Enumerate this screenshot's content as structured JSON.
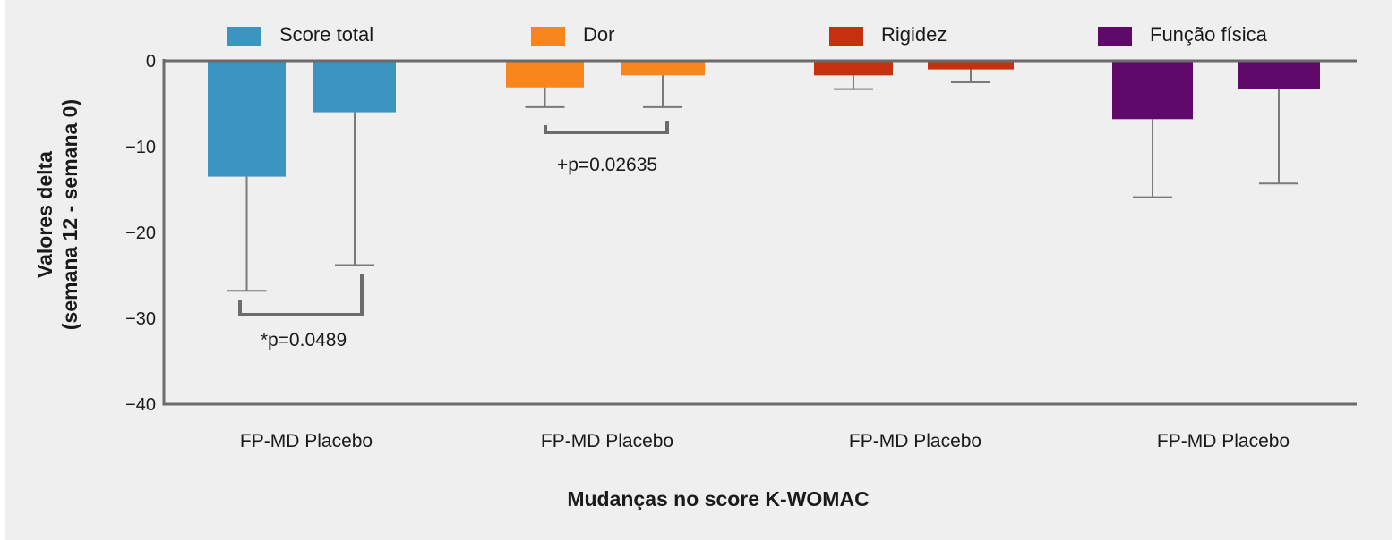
{
  "chart_data": {
    "type": "bar",
    "title": "",
    "xlabel": "Mudanças no score K-WOMAC",
    "ylabel_lines": [
      "Valores delta",
      "(semana 12 - semana 0)"
    ],
    "ylim": [
      -40,
      0
    ],
    "yticks": [
      {
        "value": 0,
        "label": "0"
      },
      {
        "value": -10,
        "label": "−10"
      },
      {
        "value": -20,
        "label": "−20"
      },
      {
        "value": -30,
        "label": "−30"
      },
      {
        "value": -40,
        "label": "−40"
      }
    ],
    "grid": false,
    "legend_position": "top",
    "groups": [
      {
        "name": "Score total",
        "color": "#3c95c0",
        "category_label": "FP-MD Placebo",
        "bars": [
          {
            "label": "FP-MD",
            "value": -13.5,
            "error": 13.3
          },
          {
            "label": "Placebo",
            "value": -6.0,
            "error": 17.8
          }
        ]
      },
      {
        "name": "Dor",
        "color": "#f8861d",
        "category_label": "FP-MD Placebo",
        "bars": [
          {
            "label": "FP-MD",
            "value": -3.1,
            "error": 2.3
          },
          {
            "label": "Placebo",
            "value": -1.7,
            "error": 3.7
          }
        ]
      },
      {
        "name": "Rigidez",
        "color": "#c7300e",
        "category_label": "FP-MD Placebo",
        "bars": [
          {
            "label": "FP-MD",
            "value": -1.7,
            "error": 1.6
          },
          {
            "label": "Placebo",
            "value": -1.0,
            "error": 1.5
          }
        ]
      },
      {
        "name": "Função física",
        "color": "#5f0a6b",
        "category_label": "FP-MD Placebo",
        "bars": [
          {
            "label": "FP-MD",
            "value": -6.8,
            "error": 9.1
          },
          {
            "label": "Placebo",
            "value": -3.3,
            "error": 11.0
          }
        ]
      }
    ],
    "annotations": [
      {
        "group": 0,
        "text": "*p=0.0489"
      },
      {
        "group": 1,
        "text": "+p=0.02635"
      }
    ]
  }
}
